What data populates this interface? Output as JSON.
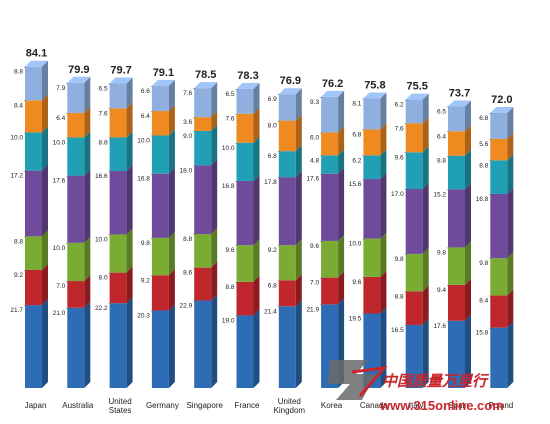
{
  "chart_data": {
    "type": "bar",
    "stacked": true,
    "title": "",
    "xlabel": "",
    "ylabel": "",
    "categories": [
      "Japan",
      "Australia",
      "United States",
      "Germany",
      "Singapore",
      "France",
      "United Kingdom",
      "Korea",
      "Canada",
      "Italy",
      "Spain",
      "Poland"
    ],
    "category_lines": [
      [
        "Japan"
      ],
      [
        "Australia"
      ],
      [
        "United",
        "States"
      ],
      [
        "Germany"
      ],
      [
        "Singapore"
      ],
      [
        "France"
      ],
      [
        "United",
        "Kingdom"
      ],
      [
        "Korea"
      ],
      [
        "Canada"
      ],
      [
        "Italy"
      ],
      [
        "Spain"
      ],
      [
        "Poland"
      ]
    ],
    "totals": [
      "84.1",
      "79.9",
      "79.7",
      "79.1",
      "78.5",
      "78.3",
      "76.9",
      "76.2",
      "75.8",
      "75.5",
      "73.7",
      "72.0"
    ],
    "series": [
      {
        "color": "#2e6db5",
        "values": [
          21.7,
          21.0,
          22.2,
          20.3,
          22.9,
          19.0,
          21.4,
          21.9,
          19.5,
          16.5,
          17.6,
          15.8
        ]
      },
      {
        "color": "#c0272d",
        "values": [
          9.2,
          7.0,
          8.0,
          9.2,
          8.6,
          8.8,
          6.8,
          7.0,
          9.6,
          8.8,
          9.4,
          8.4
        ]
      },
      {
        "color": "#7aab32",
        "values": [
          8.8,
          10.0,
          10.0,
          9.8,
          8.8,
          9.6,
          9.2,
          9.6,
          10.0,
          9.8,
          9.8,
          9.8
        ]
      },
      {
        "color": "#6f4c9b",
        "values": [
          17.2,
          17.6,
          16.6,
          16.8,
          18.0,
          16.8,
          17.8,
          17.6,
          15.6,
          17.0,
          15.2,
          16.8
        ]
      },
      {
        "color": "#21a0b5",
        "values": [
          10.0,
          10.0,
          8.8,
          10.0,
          9.0,
          10.0,
          6.8,
          4.8,
          6.2,
          9.6,
          8.8,
          8.8
        ]
      },
      {
        "color": "#ef8a21",
        "values": [
          8.4,
          6.4,
          7.6,
          6.4,
          3.6,
          7.6,
          8.0,
          6.0,
          6.8,
          7.6,
          6.4,
          5.6
        ]
      },
      {
        "color": "#8fb0de",
        "values": [
          8.8,
          7.9,
          6.5,
          6.6,
          7.6,
          6.5,
          6.9,
          9.3,
          8.1,
          6.2,
          6.5,
          6.8
        ]
      }
    ],
    "ylim": [
      0,
      84.1
    ],
    "grid": false,
    "legend": "none"
  },
  "watermark": {
    "chinese": "中国质量万里行",
    "url": "www.315online.com"
  }
}
